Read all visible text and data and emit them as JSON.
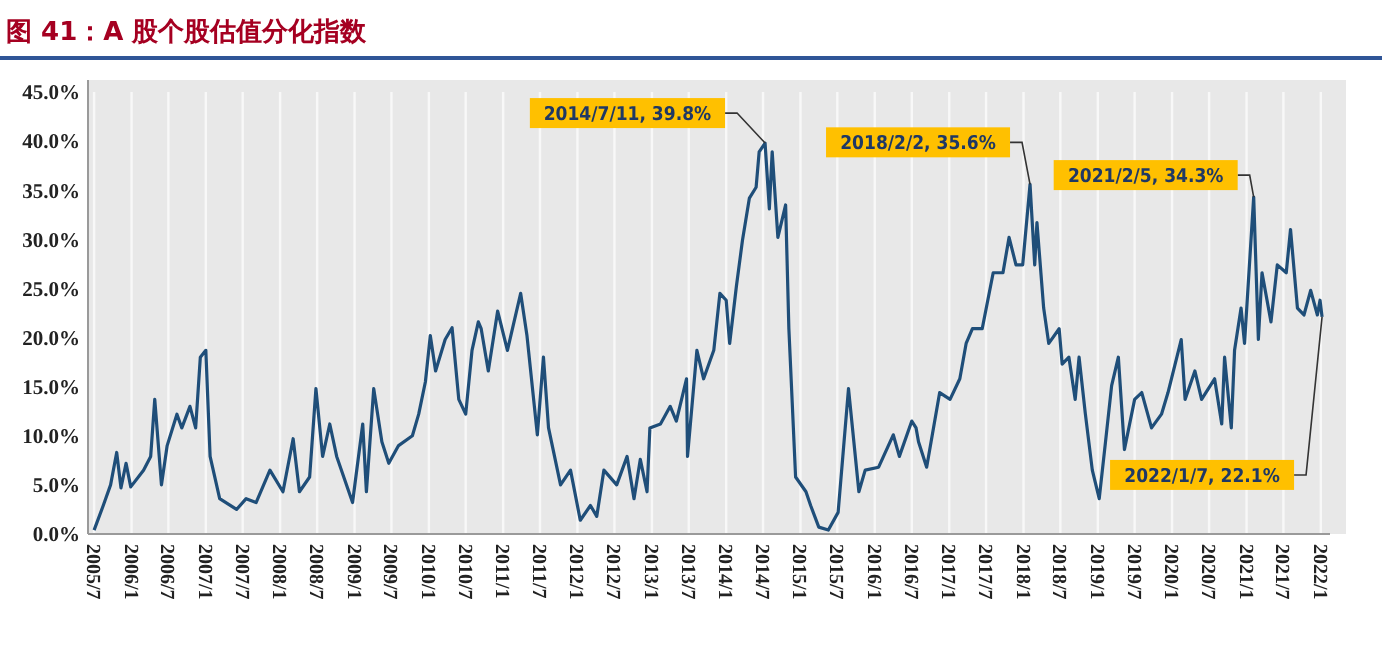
{
  "chart_data": {
    "type": "line",
    "title": "图 41：A 股个股估值分化指数",
    "xlim": [
      "2005-06-01",
      "2022-02-15"
    ],
    "xticks": [
      {
        "value": "2005-07",
        "label": "2005/7"
      },
      {
        "value": "2006-01",
        "label": "2006/1"
      },
      {
        "value": "2006-07",
        "label": "2006/7"
      },
      {
        "value": "2007-01",
        "label": "2007/1"
      },
      {
        "value": "2007-07",
        "label": "2007/7"
      },
      {
        "value": "2008-01",
        "label": "2008/1"
      },
      {
        "value": "2008-07",
        "label": "2008/7"
      },
      {
        "value": "2009-01",
        "label": "2009/1"
      },
      {
        "value": "2009-07",
        "label": "2009/7"
      },
      {
        "value": "2010-01",
        "label": "2010/1"
      },
      {
        "value": "2010-07",
        "label": "2010/7"
      },
      {
        "value": "2011-01",
        "label": "2011/1"
      },
      {
        "value": "2011-07",
        "label": "2011/7"
      },
      {
        "value": "2012-01",
        "label": "2012/1"
      },
      {
        "value": "2012-07",
        "label": "2012/7"
      },
      {
        "value": "2013-01",
        "label": "2013/1"
      },
      {
        "value": "2013-07",
        "label": "2013/7"
      },
      {
        "value": "2014-01",
        "label": "2014/1"
      },
      {
        "value": "2014-07",
        "label": "2014/7"
      },
      {
        "value": "2015-01",
        "label": "2015/1"
      },
      {
        "value": "2015-07",
        "label": "2015/7"
      },
      {
        "value": "2016-01",
        "label": "2016/1"
      },
      {
        "value": "2016-07",
        "label": "2016/7"
      },
      {
        "value": "2017-01",
        "label": "2017/1"
      },
      {
        "value": "2017-07",
        "label": "2017/7"
      },
      {
        "value": "2018-01",
        "label": "2018/1"
      },
      {
        "value": "2018-07",
        "label": "2018/7"
      },
      {
        "value": "2019-01",
        "label": "2019/1"
      },
      {
        "value": "2019-07",
        "label": "2019/7"
      },
      {
        "value": "2020-01",
        "label": "2020/1"
      },
      {
        "value": "2020-07",
        "label": "2020/7"
      },
      {
        "value": "2021-01",
        "label": "2021/1"
      },
      {
        "value": "2021-07",
        "label": "2021/7"
      },
      {
        "value": "2022-01",
        "label": "2022/1"
      }
    ],
    "ylim": [
      0,
      45
    ],
    "yticks": [
      {
        "value": 0,
        "label": "0.0%"
      },
      {
        "value": 5,
        "label": "5.0%"
      },
      {
        "value": 10,
        "label": "10.0%"
      },
      {
        "value": 15,
        "label": "15.0%"
      },
      {
        "value": 20,
        "label": "20.0%"
      },
      {
        "value": 25,
        "label": "25.0%"
      },
      {
        "value": 30,
        "label": "30.0%"
      },
      {
        "value": 35,
        "label": "35.0%"
      },
      {
        "value": 40,
        "label": "40.0%"
      },
      {
        "value": 45,
        "label": "45.0%"
      }
    ],
    "grid": "x",
    "marker": "none",
    "line_style": "solid",
    "x": [
      "2005-07-01",
      "2005-08-15",
      "2005-09-20",
      "2005-10-20",
      "2005-11-10",
      "2005-12-05",
      "2005-12-28",
      "2006-03-01",
      "2006-04-05",
      "2006-04-25",
      "2006-05-28",
      "2006-06-25",
      "2006-08-12",
      "2006-09-05",
      "2006-10-15",
      "2006-11-12",
      "2006-12-05",
      "2007-01-01",
      "2007-01-22",
      "2007-03-10",
      "2007-06-01",
      "2007-07-18",
      "2007-09-05",
      "2007-11-12",
      "2008-01-15",
      "2008-03-05",
      "2008-04-05",
      "2008-05-25",
      "2008-06-25",
      "2008-07-28",
      "2008-09-01",
      "2008-10-05",
      "2008-12-22",
      "2009-02-10",
      "2009-02-28",
      "2009-04-05",
      "2009-05-15",
      "2009-06-18",
      "2009-08-05",
      "2009-10-12",
      "2009-11-12",
      "2009-12-15",
      "2010-01-08",
      "2010-02-03",
      "2010-03-22",
      "2010-04-25",
      "2010-05-28",
      "2010-07-01",
      "2010-08-01",
      "2010-09-01",
      "2010-09-15",
      "2010-10-20",
      "2010-12-05",
      "2011-01-22",
      "2011-03-28",
      "2011-04-28",
      "2011-06-18",
      "2011-07-18",
      "2011-08-12",
      "2011-10-10",
      "2011-11-28",
      "2012-01-15",
      "2012-03-05",
      "2012-04-05",
      "2012-05-10",
      "2012-07-12",
      "2012-09-01",
      "2012-10-05",
      "2012-11-05",
      "2012-12-08",
      "2012-12-22",
      "2013-02-12",
      "2013-04-01",
      "2013-05-01",
      "2013-06-20",
      "2013-06-25",
      "2013-08-10",
      "2013-09-12",
      "2013-11-01",
      "2013-12-01",
      "2014-01-01",
      "2014-01-18",
      "2014-02-20",
      "2014-03-22",
      "2014-04-25",
      "2014-05-28",
      "2014-06-12",
      "2014-07-11",
      "2014-08-01",
      "2014-08-15",
      "2014-09-12",
      "2014-10-20",
      "2014-11-05",
      "2014-12-08",
      "2015-01-28",
      "2015-02-20",
      "2015-04-01",
      "2015-05-18",
      "2015-07-05",
      "2015-08-25",
      "2015-10-15",
      "2015-11-15",
      "2016-01-20",
      "2016-04-01",
      "2016-05-01",
      "2016-07-01",
      "2016-07-22",
      "2016-08-03",
      "2016-09-12",
      "2016-11-15",
      "2017-01-05",
      "2017-02-22",
      "2017-03-25",
      "2017-04-25",
      "2017-06-12",
      "2017-08-05",
      "2017-09-22",
      "2017-10-22",
      "2017-11-25",
      "2017-12-28",
      "2018-02-02",
      "2018-02-25",
      "2018-03-08",
      "2018-04-10",
      "2018-05-05",
      "2018-06-25",
      "2018-07-10",
      "2018-08-12",
      "2018-09-12",
      "2018-10-01",
      "2018-11-01",
      "2018-12-05",
      "2019-01-08",
      "2019-02-08",
      "2019-03-10",
      "2019-04-12",
      "2019-05-12",
      "2019-07-01",
      "2019-08-05",
      "2019-09-22",
      "2019-11-10",
      "2019-12-12",
      "2020-02-15",
      "2020-03-05",
      "2020-04-22",
      "2020-05-25",
      "2020-07-28",
      "2020-09-01",
      "2020-09-15",
      "2020-10-18",
      "2020-11-03",
      "2020-12-05",
      "2020-12-22",
      "2021-02-05",
      "2021-02-28",
      "2021-03-18",
      "2021-05-01",
      "2021-06-01",
      "2021-07-15",
      "2021-08-05",
      "2021-09-08",
      "2021-10-10",
      "2021-11-12",
      "2021-12-15",
      "2021-12-28",
      "2022-01-07"
    ],
    "series": [
      {
        "color": "#1f4e79",
        "values": [
          0.4,
          2.9,
          5,
          8.3,
          4.7,
          7.2,
          4.8,
          6.5,
          7.9,
          13.7,
          5,
          9,
          12.2,
          10.8,
          13,
          10.8,
          18,
          18.7,
          7.9,
          3.6,
          2.5,
          3.6,
          3.2,
          6.5,
          4.3,
          9.7,
          4.3,
          5.8,
          14.8,
          7.9,
          11.2,
          7.9,
          3.2,
          11.2,
          4.3,
          14.8,
          9.4,
          7.2,
          9,
          10,
          12.2,
          15.5,
          20.2,
          16.6,
          19.8,
          21,
          13.7,
          12.2,
          18.7,
          21.6,
          20.9,
          16.6,
          22.7,
          18.7,
          24.5,
          20.2,
          10.1,
          18,
          10.8,
          5,
          6.5,
          1.4,
          2.9,
          1.8,
          6.5,
          5,
          7.9,
          3.6,
          7.6,
          4.3,
          10.8,
          11.2,
          13,
          11.5,
          15.8,
          7.9,
          18.7,
          15.8,
          18.7,
          24.5,
          23.8,
          19.4,
          25.2,
          29.9,
          34.2,
          35.3,
          38.9,
          39.8,
          33.1,
          38.9,
          30.2,
          33.5,
          20.9,
          5.8,
          4.3,
          2.9,
          0.7,
          0.4,
          2.2,
          14.8,
          4.3,
          6.5,
          6.8,
          10.1,
          7.9,
          11.5,
          10.8,
          9.4,
          6.8,
          14.4,
          13.7,
          15.8,
          19.4,
          20.9,
          20.9,
          26.6,
          26.6,
          30.2,
          27.4,
          27.4,
          35.6,
          27.4,
          31.7,
          23,
          19.4,
          20.9,
          17.3,
          18,
          13.7,
          18,
          12.2,
          6.5,
          3.6,
          9.4,
          15.1,
          18,
          8.6,
          13.7,
          14.4,
          10.8,
          12.2,
          14.4,
          19.8,
          13.7,
          16.6,
          13.7,
          15.8,
          11.2,
          18,
          10.8,
          18.7,
          23,
          19.4,
          34.3,
          19.8,
          26.6,
          21.6,
          27.4,
          26.6,
          31,
          23,
          22.3,
          24.8,
          22.3,
          23.8,
          22.1
        ]
      }
    ],
    "annotations": [
      {
        "text": "2014/7/11, 39.8%",
        "x": "2014-07-11",
        "y": 39.8
      },
      {
        "text": "2018/2/2, 35.6%",
        "x": "2018-02-02",
        "y": 35.6
      },
      {
        "text": "2021/2/5, 34.3%",
        "x": "2021-02-05",
        "y": 34.3
      },
      {
        "text": "2022/1/7, 22.1%",
        "x": "2022-01-07",
        "y": 22.1
      }
    ]
  }
}
